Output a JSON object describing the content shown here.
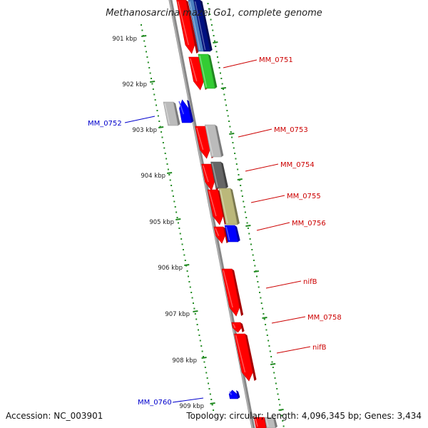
{
  "header": {
    "title": "Methanosarcina mazei Go1, complete genome"
  },
  "footer": {
    "accession": "Accession: NC_003901",
    "summary": "Topology: circular; Length: 4,096,345 bp; Genes: 3,434"
  },
  "colors": {
    "red": "#ff0000",
    "blue": "#0000ff",
    "green": "#33cc33",
    "gray": "#bbbbbb",
    "darkgray": "#666666",
    "olive": "#bbb87a",
    "navy": "#001080",
    "steel": "#4a7fc0",
    "ticks": "#228b22",
    "label_red": "#cc0000",
    "label_blue": "#0000cc",
    "backbone": "#888888"
  },
  "ticks": [
    "901 kbp",
    "902 kbp",
    "903 kbp",
    "904 kbp",
    "905 kbp",
    "906 kbp",
    "907 kbp",
    "908 kbp",
    "909 kbp"
  ],
  "labels": [
    {
      "text": "MM_0751",
      "color": "red"
    },
    {
      "text": "MM_0752",
      "color": "blue"
    },
    {
      "text": "MM_0753",
      "color": "red"
    },
    {
      "text": "MM_0754",
      "color": "red"
    },
    {
      "text": "MM_0755",
      "color": "red"
    },
    {
      "text": "MM_0756",
      "color": "red"
    },
    {
      "text": "nifB",
      "color": "red"
    },
    {
      "text": "MM_0758",
      "color": "red"
    },
    {
      "text": "nifB",
      "color": "red"
    },
    {
      "text": "MM_0760",
      "color": "blue"
    }
  ],
  "genes": [
    {
      "color": "red"
    },
    {
      "color": "steel"
    },
    {
      "color": "navy"
    },
    {
      "color": "red"
    },
    {
      "color": "green"
    },
    {
      "color": "gray"
    },
    {
      "color": "blue"
    },
    {
      "color": "red"
    },
    {
      "color": "gray"
    },
    {
      "color": "red"
    },
    {
      "color": "darkgray"
    },
    {
      "color": "red"
    },
    {
      "color": "olive"
    },
    {
      "color": "red"
    },
    {
      "color": "blue"
    },
    {
      "color": "red"
    },
    {
      "color": "red"
    },
    {
      "color": "red"
    },
    {
      "color": "blue"
    },
    {
      "color": "red"
    },
    {
      "color": "gray"
    }
  ]
}
